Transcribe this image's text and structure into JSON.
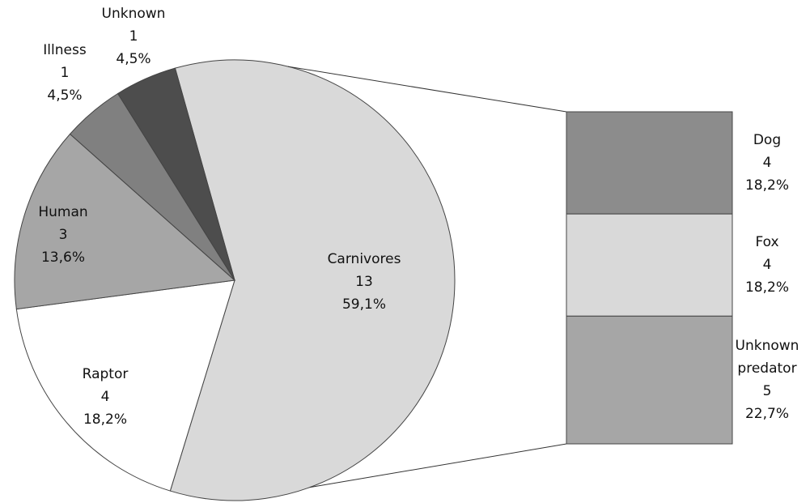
{
  "chart_data": {
    "type": "pie-of-bar",
    "categories": [
      "Carnivores",
      "Raptor",
      "Human",
      "Illness",
      "Unknown"
    ],
    "values": [
      13,
      4,
      3,
      1,
      1
    ],
    "percent_labels": [
      "59,1%",
      "18,2%",
      "13,6%",
      "4,5%",
      "4,5%"
    ],
    "colors": [
      "#d9d9d9",
      "#ffffff",
      "#a6a6a6",
      "#808080",
      "#4d4d4d"
    ],
    "breakdown": {
      "categories": [
        "Dog",
        "Fox",
        "Unknown predator"
      ],
      "values": [
        4,
        4,
        5
      ],
      "percent_labels": [
        "18,2%",
        "18,2%",
        "22,7%"
      ],
      "colors": [
        "#8c8c8c",
        "#d9d9d9",
        "#a6a6a6"
      ]
    }
  }
}
